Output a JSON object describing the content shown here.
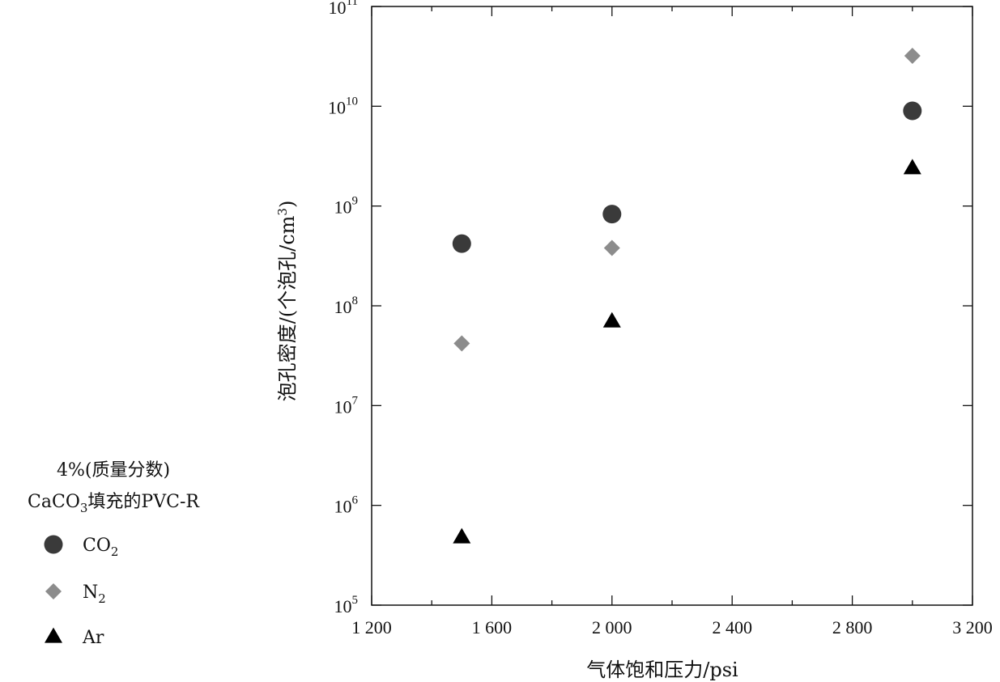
{
  "chart_data": {
    "type": "scatter",
    "xlabel": "气体饱和压力/psi",
    "ylabel_main": "泡孔密度/(个泡孔/cm",
    "ylabel_sup": "3",
    "ylabel_close": ")",
    "xlim": [
      1200,
      3200
    ],
    "ylim": [
      100000,
      100000000000
    ],
    "yscale": "log",
    "x_ticks": [
      {
        "value": 1200,
        "label": "1 200"
      },
      {
        "value": 1600,
        "label": "1 600"
      },
      {
        "value": 2000,
        "label": "2 000"
      },
      {
        "value": 2400,
        "label": "2 400"
      },
      {
        "value": 2800,
        "label": "2 800"
      },
      {
        "value": 3200,
        "label": "3 200"
      }
    ],
    "y_ticks": [
      {
        "exp": 5,
        "base": "10",
        "sup": "5"
      },
      {
        "exp": 6,
        "base": "10",
        "sup": "6"
      },
      {
        "exp": 7,
        "base": "10",
        "sup": "7"
      },
      {
        "exp": 8,
        "base": "10",
        "sup": "8"
      },
      {
        "exp": 9,
        "base": "10",
        "sup": "9"
      },
      {
        "exp": 10,
        "base": "10",
        "sup": "10"
      },
      {
        "exp": 11,
        "base": "10",
        "sup": "11"
      }
    ],
    "grid": false,
    "legend_title_line1": "4%(质量分数)",
    "legend_title_line2_pre": "CaCO",
    "legend_title_line2_sub": "3",
    "legend_title_line2_post": "填充的PVC-R",
    "legend_position": "left",
    "series": [
      {
        "key": "co2",
        "name": "CO",
        "name_sub": "2",
        "marker": "circle",
        "color": "#3a3a3a",
        "points": [
          {
            "x": 1500,
            "y": 420000000
          },
          {
            "x": 2000,
            "y": 830000000
          },
          {
            "x": 3000,
            "y": 9000000000
          }
        ]
      },
      {
        "key": "n2",
        "name": "N",
        "name_sub": "2",
        "marker": "diamond",
        "color": "#8c8c8c",
        "points": [
          {
            "x": 1500,
            "y": 42000000
          },
          {
            "x": 2000,
            "y": 380000000
          },
          {
            "x": 3000,
            "y": 32000000000
          }
        ]
      },
      {
        "key": "ar",
        "name": "Ar",
        "name_sub": "",
        "marker": "triangle",
        "color": "#000000",
        "points": [
          {
            "x": 1500,
            "y": 480000
          },
          {
            "x": 2000,
            "y": 70000000
          },
          {
            "x": 3000,
            "y": 2400000000
          }
        ]
      }
    ]
  }
}
